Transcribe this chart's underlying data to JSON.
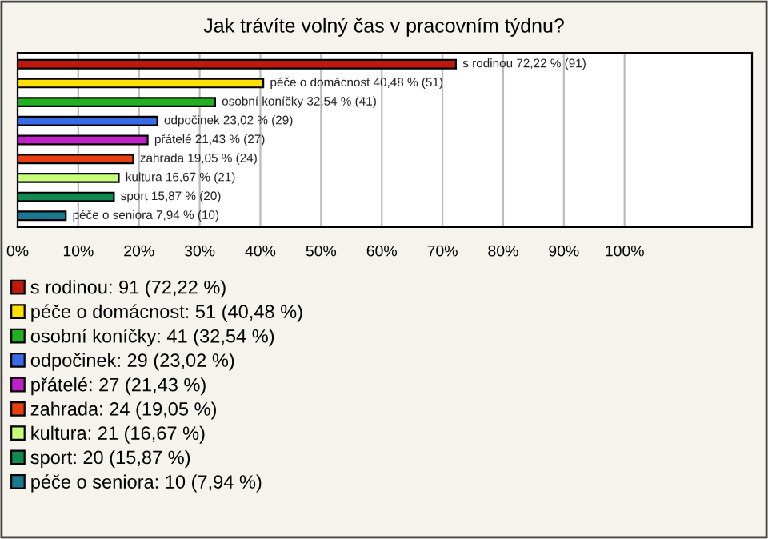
{
  "chart_data": {
    "type": "bar",
    "orientation": "horizontal",
    "title": "Jak trávíte volný čas v pracovním týdnu?",
    "categories": [
      null,
      null,
      null,
      null,
      null,
      null,
      null,
      null,
      null
    ],
    "series": [
      {
        "name": "s rodinou: 91 (72,22 %)",
        "color": "#c0180c",
        "values": [
          72.22,
          null,
          null,
          null,
          null,
          null,
          null,
          null,
          null
        ],
        "value_labels": [
          "s rodinou 72,22 % (91)",
          null,
          null,
          null,
          null,
          null,
          null,
          null,
          null
        ]
      },
      {
        "name": "péče o domácnost: 51 (40,48 %)",
        "color": "#ffe000",
        "values": [
          null,
          40.48,
          null,
          null,
          null,
          null,
          null,
          null,
          null
        ],
        "value_labels": [
          null,
          "péče o domácnost 40,48 % (51)",
          null,
          null,
          null,
          null,
          null,
          null,
          null
        ]
      },
      {
        "name": "osobní koníčky: 41 (32,54 %)",
        "color": "#22b022",
        "values": [
          null,
          null,
          32.54,
          null,
          null,
          null,
          null,
          null,
          null
        ],
        "value_labels": [
          null,
          null,
          "osobní koníčky 32,54 % (41)",
          null,
          null,
          null,
          null,
          null,
          null
        ]
      },
      {
        "name": "odpočinek: 29 (23,02 %)",
        "color": "#3a6ae8",
        "values": [
          null,
          null,
          null,
          23.02,
          null,
          null,
          null,
          null,
          null
        ],
        "value_labels": [
          null,
          null,
          null,
          "odpočinek 23,02 % (29)",
          null,
          null,
          null,
          null,
          null
        ]
      },
      {
        "name": "přátelé: 27 (21,43 %)",
        "color": "#c020c8",
        "values": [
          null,
          null,
          null,
          null,
          21.43,
          null,
          null,
          null,
          null
        ],
        "value_labels": [
          null,
          null,
          null,
          null,
          "přátelé 21,43 % (27)",
          null,
          null,
          null,
          null
        ]
      },
      {
        "name": "zahrada: 24 (19,05 %)",
        "color": "#e84010",
        "values": [
          null,
          null,
          null,
          null,
          null,
          19.05,
          null,
          null,
          null
        ],
        "value_labels": [
          null,
          null,
          null,
          null,
          null,
          "zahrada 19,05 % (24)",
          null,
          null,
          null
        ]
      },
      {
        "name": "kultura: 21 (16,67 %)",
        "color": "#c8ff78",
        "values": [
          null,
          null,
          null,
          null,
          null,
          null,
          16.67,
          null,
          null
        ],
        "value_labels": [
          null,
          null,
          null,
          null,
          null,
          null,
          "kultura 16,67 % (21)",
          null,
          null
        ]
      },
      {
        "name": "sport: 20 (15,87 %)",
        "color": "#108a50",
        "values": [
          null,
          null,
          null,
          null,
          null,
          null,
          null,
          15.87,
          null
        ],
        "value_labels": [
          null,
          null,
          null,
          null,
          null,
          null,
          null,
          "sport 15,87 % (20)",
          null
        ]
      },
      {
        "name": "péče o seniora: 10 (7,94 %)",
        "color": "#1a7890",
        "values": [
          null,
          null,
          null,
          null,
          null,
          null,
          null,
          null,
          7.94
        ],
        "value_labels": [
          null,
          null,
          null,
          null,
          null,
          null,
          null,
          null,
          "péče o seniora 7,94 % (10)"
        ]
      }
    ],
    "xlim": [
      0,
      121
    ],
    "xticks": [
      {
        "value": 0,
        "label": "0%"
      },
      {
        "value": 10,
        "label": "10%"
      },
      {
        "value": 20,
        "label": "20%"
      },
      {
        "value": 30,
        "label": "30%"
      },
      {
        "value": 40,
        "label": "40%"
      },
      {
        "value": 50,
        "label": "50%"
      },
      {
        "value": 60,
        "label": "60%"
      },
      {
        "value": 70,
        "label": "70%"
      },
      {
        "value": 80,
        "label": "80%"
      },
      {
        "value": 90,
        "label": "90%"
      },
      {
        "value": 100,
        "label": "100%"
      }
    ],
    "grid": "x",
    "legend": "bottom",
    "tick_labels": "x"
  }
}
